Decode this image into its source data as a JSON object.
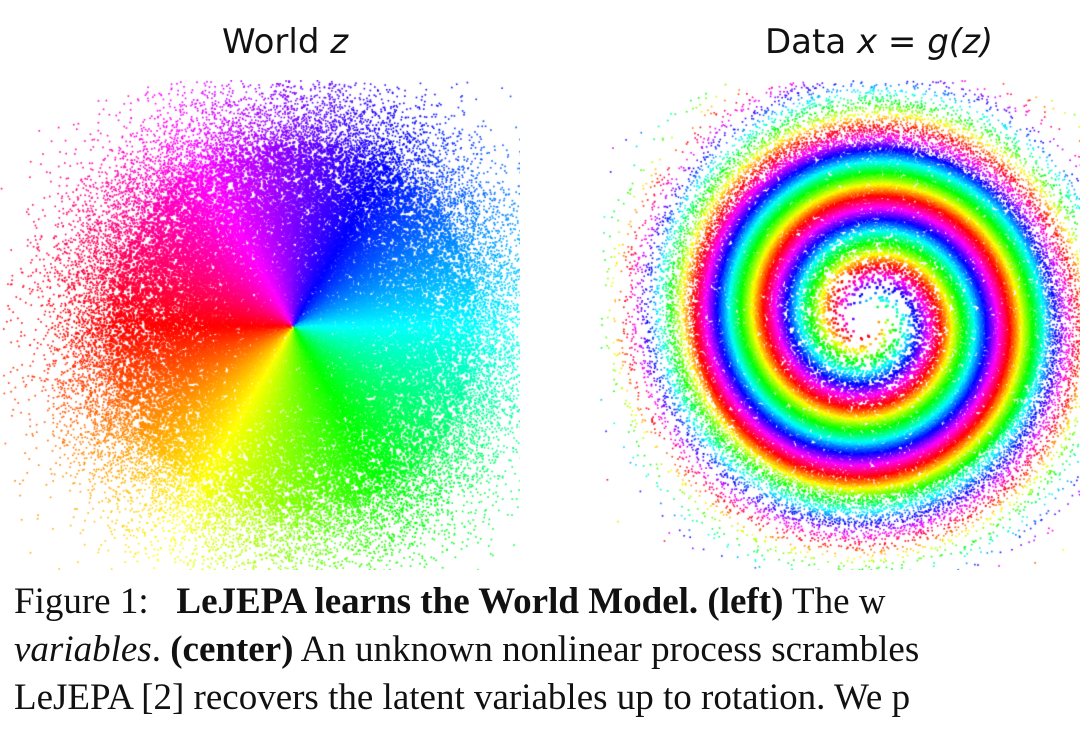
{
  "figure": {
    "left_panel": {
      "title_prefix": "World ",
      "title_math": "z"
    },
    "right_panel": {
      "title_prefix": "Data ",
      "title_math": "x = g(z)"
    }
  },
  "chart_data": [
    {
      "type": "scatter",
      "title": "World z",
      "description_colors": "points colored by angle (hue wheel)",
      "xlim": [
        -3,
        3
      ],
      "ylim": [
        -3,
        3
      ]
    },
    {
      "type": "scatter",
      "title": "Data x = g(z)",
      "xlim": [
        -3,
        3
      ],
      "ylim": [
        -3,
        3
      ]
    }
  ],
  "caption": {
    "line1": {
      "label": "Figure 1:",
      "bold": "LeJEPA learns the World Model.",
      "bold2": "(left)",
      "rest": "The w"
    },
    "line2": {
      "italic": "variables",
      "period": ".",
      "bold": "(center)",
      "rest": "An unknown nonlinear process scrambles"
    },
    "line3": {
      "text": "LeJEPA [2] recovers the latent variables up to rotation. We p"
    }
  }
}
